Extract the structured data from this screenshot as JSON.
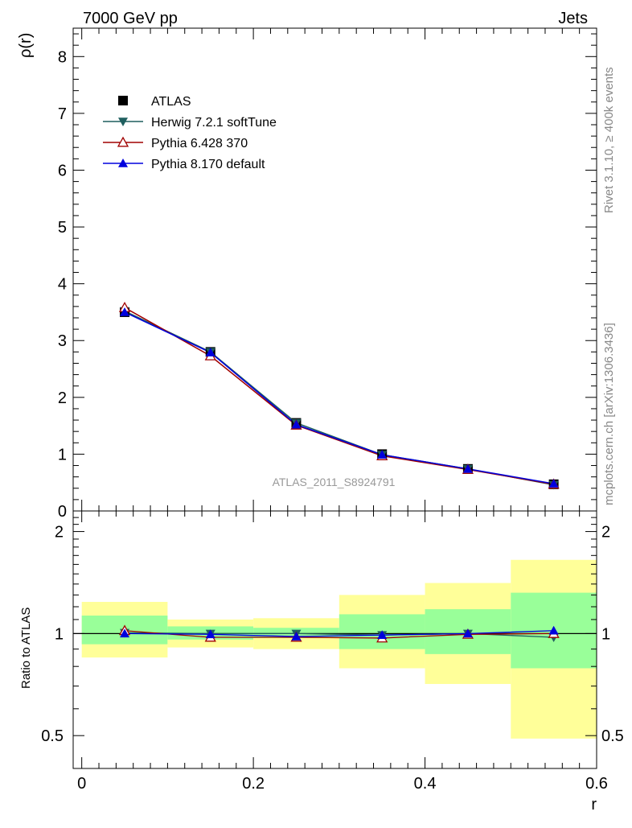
{
  "header": {
    "left": "7000 GeV pp",
    "right": "Jets"
  },
  "side_texts": {
    "rivet": "Rivet 3.1.10, ≥ 400k events",
    "mcplots": "mcplots.cern.ch [arXiv:1306.3436]"
  },
  "analysis_label": "ATLAS_2011_S8924791",
  "colors": {
    "atlas": "#000000",
    "herwig": "#1f5f5f",
    "pythia6": "#a00000",
    "pythia8": "#0000dd",
    "band_inner": "#99ff99",
    "band_outer": "#ffff99"
  },
  "chart_data": [
    {
      "type": "line",
      "panel": "main",
      "ylabel": "ρ(r)",
      "xlim": [
        -0.01,
        0.6
      ],
      "ylim": [
        0,
        8.5
      ],
      "y_ticks": [
        0,
        1,
        2,
        3,
        4,
        5,
        6,
        7,
        8
      ],
      "y_tick_labels": [
        "0",
        "1",
        "2",
        "3",
        "4",
        "5",
        "6",
        "7",
        "8"
      ],
      "legend_position": "top-left",
      "x": [
        0.05,
        0.15,
        0.25,
        0.35,
        0.45,
        0.55
      ],
      "series": [
        {
          "name": "ATLAS",
          "marker": "square",
          "values": [
            3.5,
            2.8,
            1.55,
            1.0,
            0.74,
            0.47
          ]
        },
        {
          "name": "Herwig 7.2.1 softTune",
          "marker": "triangle-down",
          "values": [
            3.52,
            2.8,
            1.55,
            0.99,
            0.74,
            0.46
          ]
        },
        {
          "name": "Pythia 6.428 370",
          "marker": "triangle-up-open",
          "values": [
            3.58,
            2.73,
            1.51,
            0.97,
            0.73,
            0.47
          ]
        },
        {
          "name": "Pythia 8.170 default",
          "marker": "triangle-up",
          "values": [
            3.5,
            2.79,
            1.52,
            0.99,
            0.74,
            0.48
          ]
        }
      ]
    },
    {
      "type": "line",
      "panel": "ratio",
      "ylabel": "Ratio to ATLAS",
      "xlabel": "r",
      "xlim": [
        -0.01,
        0.6
      ],
      "ylim": [
        0.4,
        2.3
      ],
      "y_ticks": [
        0.5,
        1,
        2
      ],
      "y_tick_labels": [
        "0.5",
        "1",
        "2"
      ],
      "x_ticks": [
        0,
        0.2,
        0.4,
        0.6
      ],
      "x_tick_labels": [
        "0",
        "0.2",
        "0.4",
        "0.6"
      ],
      "x": [
        0.05,
        0.15,
        0.25,
        0.35,
        0.45,
        0.55
      ],
      "bins": [
        [
          0,
          0.1
        ],
        [
          0.1,
          0.2
        ],
        [
          0.2,
          0.3
        ],
        [
          0.3,
          0.4
        ],
        [
          0.4,
          0.5
        ],
        [
          0.5,
          0.6
        ]
      ],
      "band_inner": [
        [
          0.93,
          1.13
        ],
        [
          0.96,
          1.05
        ],
        [
          0.97,
          1.04
        ],
        [
          0.9,
          1.14
        ],
        [
          0.87,
          1.18
        ],
        [
          0.79,
          1.32
        ]
      ],
      "band_outer": [
        [
          0.85,
          1.24
        ],
        [
          0.91,
          1.1
        ],
        [
          0.9,
          1.11
        ],
        [
          0.79,
          1.3
        ],
        [
          0.71,
          1.41
        ],
        [
          0.49,
          1.65
        ]
      ],
      "series": [
        {
          "name": "Herwig 7.2.1 softTune",
          "marker": "triangle-down",
          "values": [
            1.005,
            1.0,
            1.0,
            0.99,
            1.0,
            0.975
          ]
        },
        {
          "name": "Pythia 6.428 370",
          "marker": "triangle-up-open",
          "values": [
            1.02,
            0.975,
            0.975,
            0.97,
            0.995,
            1.0
          ]
        },
        {
          "name": "Pythia 8.170 default",
          "marker": "triangle-up",
          "values": [
            1.0,
            0.995,
            0.98,
            0.99,
            1.0,
            1.02
          ]
        }
      ]
    }
  ]
}
